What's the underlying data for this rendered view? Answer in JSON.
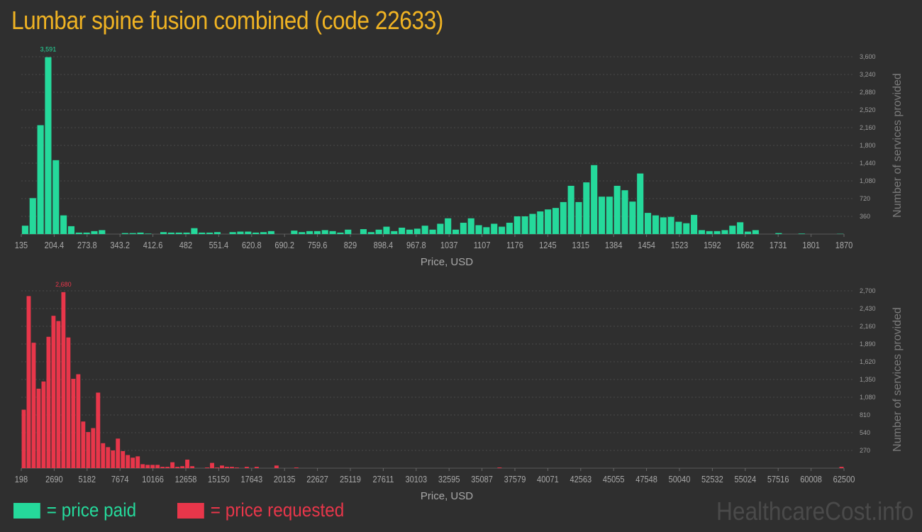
{
  "title": "Lumbar spine fusion combined (code 22633)",
  "legend": {
    "paid_label": "= price paid",
    "requested_label": "= price requested"
  },
  "watermark": "HealthcareCost.info",
  "colors": {
    "paid": "#25d99b",
    "requested": "#e8364a",
    "title": "#f0b323"
  },
  "chart_data": [
    {
      "type": "bar",
      "series": [
        {
          "name": "price paid"
        }
      ],
      "xlabel": "Price, USD",
      "ylabel": "Number of services provided",
      "xlim": [
        135,
        1870
      ],
      "ylim": [
        0,
        3600
      ],
      "x_ticks": [
        "135",
        "204.4",
        "273.8",
        "343.2",
        "412.6",
        "482",
        "551.4",
        "620.8",
        "690.2",
        "759.6",
        "829",
        "898.4",
        "967.8",
        "1037",
        "1107",
        "1176",
        "1245",
        "1315",
        "1384",
        "1454",
        "1523",
        "1592",
        "1662",
        "1731",
        "1801",
        "1870"
      ],
      "y_ticks": [
        "360",
        "720",
        "1,080",
        "1,440",
        "1,800",
        "2,160",
        "2,520",
        "2,880",
        "3,240",
        "3,600"
      ],
      "peak_label": "3,591",
      "peak_index": 3,
      "values": [
        170,
        730,
        2210,
        3591,
        1500,
        380,
        160,
        30,
        30,
        60,
        80,
        0,
        0,
        20,
        20,
        30,
        10,
        0,
        40,
        30,
        30,
        30,
        120,
        30,
        30,
        40,
        0,
        40,
        50,
        50,
        30,
        40,
        60,
        0,
        0,
        70,
        40,
        60,
        60,
        80,
        60,
        30,
        90,
        0,
        100,
        40,
        90,
        150,
        60,
        130,
        90,
        110,
        170,
        90,
        210,
        320,
        90,
        230,
        320,
        180,
        140,
        210,
        150,
        230,
        360,
        360,
        410,
        460,
        500,
        530,
        650,
        980,
        650,
        1050,
        1400,
        760,
        760,
        980,
        890,
        660,
        1230,
        430,
        380,
        340,
        350,
        250,
        220,
        390,
        80,
        60,
        60,
        80,
        170,
        240,
        50,
        80,
        0,
        0,
        20,
        0,
        0,
        10,
        0,
        0,
        0,
        0,
        5
      ]
    },
    {
      "type": "bar",
      "series": [
        {
          "name": "price requested"
        }
      ],
      "xlabel": "Price, USD",
      "ylabel": "Number of services provided",
      "xlim": [
        198,
        62500
      ],
      "ylim": [
        0,
        2700
      ],
      "x_ticks": [
        "198",
        "2690",
        "5182",
        "7674",
        "10166",
        "12658",
        "15150",
        "17643",
        "20135",
        "22627",
        "25119",
        "27611",
        "30103",
        "32595",
        "35087",
        "37579",
        "40071",
        "42563",
        "45055",
        "47548",
        "50040",
        "52532",
        "55024",
        "57516",
        "60008",
        "62500"
      ],
      "y_ticks": [
        "270",
        "540",
        "810",
        "1,080",
        "1,350",
        "1,620",
        "1,890",
        "2,160",
        "2,430",
        "2,700"
      ],
      "peak_label": "2,680",
      "peak_index": 8,
      "values": [
        890,
        2620,
        1910,
        1210,
        1320,
        2000,
        2320,
        2240,
        2680,
        1990,
        1360,
        1430,
        710,
        550,
        610,
        1150,
        380,
        320,
        270,
        450,
        260,
        200,
        160,
        180,
        60,
        50,
        50,
        50,
        20,
        20,
        90,
        20,
        30,
        130,
        30,
        0,
        0,
        10,
        80,
        10,
        40,
        20,
        20,
        10,
        0,
        20,
        0,
        20,
        0,
        0,
        0,
        40,
        0,
        0,
        0,
        10,
        0,
        0,
        0,
        0,
        0,
        0,
        0,
        0,
        0,
        0,
        0,
        0,
        0,
        0,
        0,
        0,
        0,
        0,
        0,
        0,
        0,
        0,
        0,
        0,
        0,
        0,
        0,
        0,
        0,
        0,
        0,
        0,
        0,
        0,
        0,
        0,
        0,
        0,
        0,
        0,
        10,
        0,
        0,
        0,
        0,
        0,
        0,
        0,
        0,
        0,
        0,
        0,
        0,
        0,
        0,
        0,
        0,
        0,
        0,
        0,
        0,
        0,
        0,
        0,
        0,
        0,
        0,
        0,
        0,
        0,
        0,
        0,
        0,
        0,
        0,
        0,
        0,
        0,
        0,
        0,
        0,
        0,
        0,
        0,
        0,
        0,
        0,
        0,
        0,
        0,
        0,
        0,
        0,
        0,
        0,
        0,
        0,
        0,
        0,
        0,
        0,
        0,
        0,
        0,
        0,
        0,
        0,
        0,
        0,
        20
      ]
    }
  ]
}
